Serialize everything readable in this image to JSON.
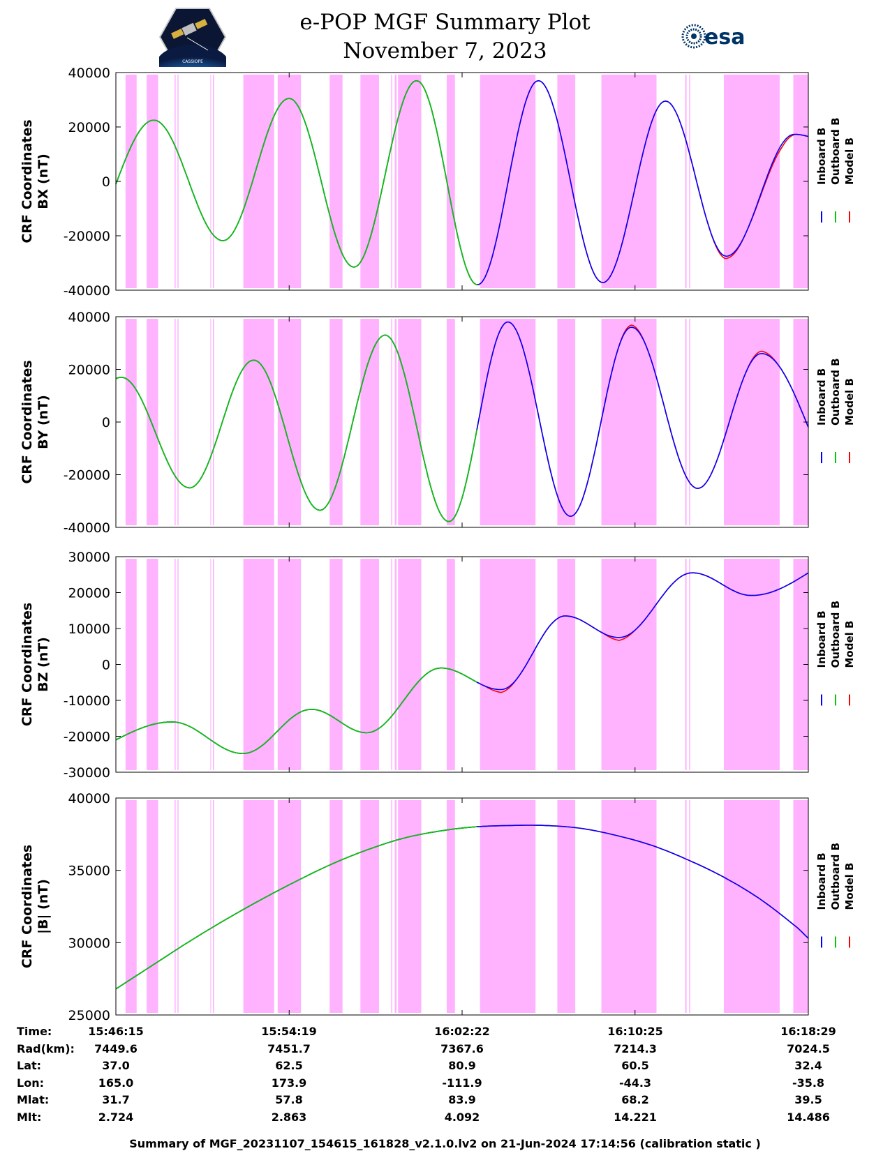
{
  "header": {
    "title": "e-POP MGF Summary Plot",
    "date": "November 7, 2023",
    "logo_left_label": "CASSIOPE",
    "logo_right_label": "esa"
  },
  "colors": {
    "inboard": "#0000ff",
    "outboard": "#00cc00",
    "model": "#ff0000",
    "shade": "#ffb3ff",
    "axes": "#000000"
  },
  "legend": [
    "Inboard B",
    "Outboard B",
    "Model B"
  ],
  "chart_data": [
    {
      "type": "line",
      "name": "bx",
      "ylabel": [
        "CRF Coordinates",
        "BX (nT)"
      ],
      "ylim": [
        -40000,
        40000
      ],
      "yticks": [
        40000,
        20000,
        0,
        -20000,
        -40000
      ],
      "xlim": [
        0,
        1934
      ],
      "xticks": [
        0,
        484,
        967,
        1450,
        1934
      ],
      "start": {
        "t": 0,
        "v": -1000
      },
      "extrema": [
        [
          106,
          22500
        ],
        [
          299,
          -21800
        ],
        [
          484,
          30500
        ],
        [
          665,
          -31500
        ],
        [
          840,
          37000
        ],
        [
          1010,
          -38000
        ],
        [
          1180,
          37000
        ],
        [
          1360,
          -37200
        ],
        [
          1535,
          29500
        ],
        [
          1705,
          -27500
        ],
        [
          1895,
          17300
        ]
      ],
      "end": {
        "t": 1934,
        "v": 16500
      },
      "model_offset": [
        [
          1660,
          0
        ],
        [
          1700,
          -900
        ],
        [
          1760,
          0
        ],
        [
          1860,
          -1200
        ],
        [
          1900,
          0
        ]
      ]
    },
    {
      "type": "line",
      "name": "by",
      "ylabel": [
        "CRF Coordinates",
        "BY (nT)"
      ],
      "ylim": [
        -40000,
        40000
      ],
      "yticks": [
        40000,
        20000,
        0,
        -20000,
        -40000
      ],
      "xlim": [
        0,
        1934
      ],
      "xticks": [
        0,
        484,
        967,
        1450,
        1934
      ],
      "start": {
        "t": 0,
        "v": 16500
      },
      "extrema": [
        [
          15,
          17000
        ],
        [
          206,
          -25000
        ],
        [
          385,
          23500
        ],
        [
          570,
          -33500
        ],
        [
          752,
          33000
        ],
        [
          930,
          -37800
        ],
        [
          1095,
          38000
        ],
        [
          1270,
          -35800
        ],
        [
          1440,
          36000
        ],
        [
          1625,
          -25200
        ],
        [
          1803,
          26000
        ]
      ],
      "end": {
        "t": 1934,
        "v": -2000
      },
      "model_offset": [
        [
          1400,
          0
        ],
        [
          1440,
          800
        ],
        [
          1480,
          0
        ],
        [
          1760,
          0
        ],
        [
          1803,
          900
        ],
        [
          1850,
          0
        ]
      ]
    },
    {
      "type": "line",
      "name": "bz",
      "ylabel": [
        "CRF Coordinates",
        "BZ (nT)"
      ],
      "ylim": [
        -30000,
        30000
      ],
      "yticks": [
        30000,
        20000,
        10000,
        0,
        -10000,
        -20000,
        -30000
      ],
      "xlim": [
        0,
        1934
      ],
      "xticks": [
        0,
        484,
        967,
        1450,
        1934
      ],
      "start": {
        "t": 0,
        "v": -21000
      },
      "extrema": [
        [
          157,
          -16000
        ],
        [
          355,
          -24800
        ],
        [
          546,
          -12500
        ],
        [
          700,
          -19000
        ],
        [
          908,
          -1000
        ],
        [
          1075,
          -7000
        ],
        [
          1255,
          13500
        ],
        [
          1405,
          7500
        ],
        [
          1610,
          25500
        ],
        [
          1775,
          19200
        ]
      ],
      "end": {
        "t": 1934,
        "v": 25500
      },
      "model_offset": [
        [
          1030,
          0
        ],
        [
          1075,
          -800
        ],
        [
          1120,
          0
        ],
        [
          1360,
          0
        ],
        [
          1405,
          -800
        ],
        [
          1450,
          0
        ]
      ]
    },
    {
      "type": "line",
      "name": "btotal",
      "ylabel": [
        "CRF Coordinates",
        "|B| (nT)"
      ],
      "ylim": [
        25000,
        40000
      ],
      "yticks": [
        40000,
        35000,
        30000,
        25000
      ],
      "xlim": [
        0,
        1934
      ],
      "xticks": [
        0,
        484,
        967,
        1450,
        1934
      ],
      "start": {
        "t": 0,
        "v": 26800
      },
      "extrema": [],
      "points": [
        [
          0,
          26800
        ],
        [
          100,
          28400
        ],
        [
          200,
          30000
        ],
        [
          300,
          31500
        ],
        [
          400,
          32900
        ],
        [
          500,
          34200
        ],
        [
          600,
          35400
        ],
        [
          700,
          36400
        ],
        [
          800,
          37200
        ],
        [
          900,
          37700
        ],
        [
          1000,
          38000
        ],
        [
          1100,
          38100
        ],
        [
          1200,
          38100
        ],
        [
          1300,
          37900
        ],
        [
          1400,
          37400
        ],
        [
          1500,
          36700
        ],
        [
          1600,
          35700
        ],
        [
          1700,
          34500
        ],
        [
          1800,
          33000
        ],
        [
          1900,
          31100
        ],
        [
          1934,
          30300
        ]
      ],
      "end": {
        "t": 1934,
        "v": 30300
      },
      "model_offset": []
    }
  ],
  "shaded_intervals": [
    [
      27,
      58
    ],
    [
      86,
      118
    ],
    [
      164,
      167
    ],
    [
      172,
      175
    ],
    [
      264,
      266
    ],
    [
      271,
      274
    ],
    [
      356,
      442
    ],
    [
      452,
      517
    ],
    [
      597,
      633
    ],
    [
      683,
      735
    ],
    [
      769,
      772
    ],
    [
      779,
      784
    ],
    [
      788,
      853
    ],
    [
      924,
      947
    ],
    [
      1017,
      1172
    ],
    [
      1233,
      1283
    ],
    [
      1356,
      1510
    ],
    [
      1590,
      1594
    ],
    [
      1601,
      1604
    ],
    [
      1698,
      1854
    ],
    [
      1892,
      1934
    ]
  ],
  "outboard_end_t": 1010,
  "orbit_info": {
    "labels": [
      "Time:",
      "Rad(km):",
      "Lat:",
      "Lon:",
      "Mlat:",
      "Mlt:"
    ],
    "columns": [
      [
        "15:46:15",
        "7449.6",
        "37.0",
        "165.0",
        "31.7",
        "2.724"
      ],
      [
        "15:54:19",
        "7451.7",
        "62.5",
        "173.9",
        "57.8",
        "2.863"
      ],
      [
        "16:02:22",
        "7367.6",
        "80.9",
        "-111.9",
        "83.9",
        "4.092"
      ],
      [
        "16:10:25",
        "7214.3",
        "60.5",
        "-44.3",
        "68.2",
        "14.221"
      ],
      [
        "16:18:29",
        "7024.5",
        "32.4",
        "-35.8",
        "39.5",
        "14.486"
      ]
    ]
  },
  "footer": "Summary of MGF_20231107_154615_161828_v2.1.0.lv2 on 21-Jun-2024 17:14:56 (calibration static )"
}
